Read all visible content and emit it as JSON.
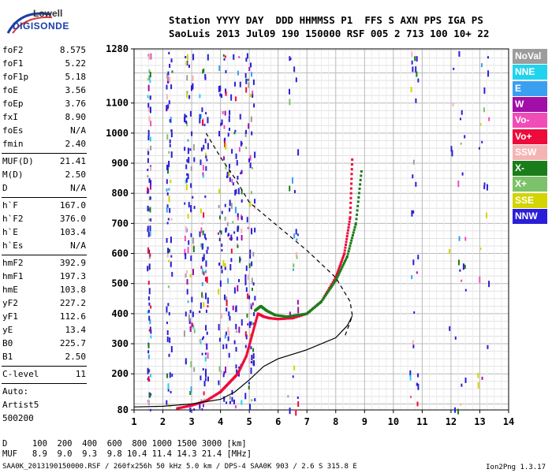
{
  "logo": {
    "line1": "Lowell",
    "line2": "DIGISONDE"
  },
  "header": {
    "line1": "Station YYYY DAY  DDD HHMMSS P1  FFS S AXN PPS IGA PS",
    "line2": "SaoLuis 2013 Jul09 190 150000 RSF 005 2 713 100 10+ 22"
  },
  "params_group1": [
    {
      "name": "foF2",
      "value": "8.575"
    },
    {
      "name": "foF1",
      "value": "5.22"
    },
    {
      "name": "foF1p",
      "value": "5.18"
    },
    {
      "name": "foE",
      "value": "3.56"
    },
    {
      "name": "foEp",
      "value": "3.76"
    },
    {
      "name": "fxI",
      "value": "8.90"
    },
    {
      "name": "foEs",
      "value": "N/A"
    },
    {
      "name": "fmin",
      "value": "2.40"
    }
  ],
  "params_group2": [
    {
      "name": "MUF(D)",
      "value": "21.41"
    },
    {
      "name": "M(D)",
      "value": "2.50"
    },
    {
      "name": "D",
      "value": "N/A"
    }
  ],
  "params_group3": [
    {
      "name": "h`F",
      "value": "167.0"
    },
    {
      "name": "h`F2",
      "value": "376.0"
    },
    {
      "name": "h`E",
      "value": "103.4"
    },
    {
      "name": "h`Es",
      "value": "N/A"
    }
  ],
  "params_group4": [
    {
      "name": "hmF2",
      "value": "392.9"
    },
    {
      "name": "hmF1",
      "value": "197.3"
    },
    {
      "name": "hmE",
      "value": "103.8"
    },
    {
      "name": "yF2",
      "value": "227.2"
    },
    {
      "name": "yF1",
      "value": "112.6"
    },
    {
      "name": "yE",
      "value": "13.4"
    },
    {
      "name": "B0",
      "value": "225.7"
    },
    {
      "name": "B1",
      "value": "2.50"
    }
  ],
  "clevel": {
    "name": "C-level",
    "value": "11"
  },
  "auto_text": [
    "Auto:",
    "Artist5",
    "500200"
  ],
  "legend": [
    {
      "label": "NoVal",
      "color": "#9c9c9c"
    },
    {
      "label": "NNE",
      "color": "#22d3ee"
    },
    {
      "label": "E",
      "color": "#3b9ff0"
    },
    {
      "label": "W",
      "color": "#a10ea8"
    },
    {
      "label": "Vo-",
      "color": "#f04db8"
    },
    {
      "label": "Vo+",
      "color": "#ee0a3b"
    },
    {
      "label": "SSW",
      "color": "#f5b4b4"
    },
    {
      "label": "X-",
      "color": "#1a7d1a"
    },
    {
      "label": "X+",
      "color": "#7cc26a"
    },
    {
      "label": "SSE",
      "color": "#d4d400"
    },
    {
      "label": "NNW",
      "color": "#2a1fd6"
    }
  ],
  "footer": {
    "d_row": "D     100  200  400  600  800 1000 1500 3000 [km]",
    "muf_row": "MUF   8.9  9.0  9.3  9.8 10.4 11.4 14.3 21.4 [MHz]",
    "file_row": "SAA0K_2013190150000.RSF / 260fx256h 50 kHz 5.0 km / DPS-4 SAA0K 903 / 2.6 S 315.8 E",
    "version": "Ion2Png 1.3.17"
  },
  "chart_data": {
    "type": "scatter",
    "xlim": [
      1,
      14
    ],
    "ylim": [
      80,
      1280
    ],
    "x_ticks": [
      1,
      2,
      3,
      4,
      5,
      6,
      7,
      8,
      9,
      10,
      11,
      12,
      13,
      14
    ],
    "y_ticks": [
      80,
      200,
      300,
      400,
      500,
      600,
      700,
      800,
      900,
      1000,
      1100,
      1280
    ],
    "grid": true,
    "legend_position": "right",
    "series": [
      {
        "name": "Vo+",
        "color": "#ee0a3b",
        "x": [
          2.5,
          3.0,
          3.5,
          4.0,
          4.3,
          4.6,
          4.9,
          5.1,
          5.3,
          5.5,
          5.7,
          6.0,
          6.5,
          7.0,
          7.5,
          8.0,
          8.3,
          8.5,
          8.575
        ],
        "y": [
          85,
          95,
          110,
          140,
          170,
          200,
          260,
          330,
          400,
          390,
          385,
          382,
          385,
          400,
          440,
          520,
          600,
          720,
          920
        ]
      },
      {
        "name": "X-",
        "color": "#1a7d1a",
        "x": [
          5.2,
          5.4,
          5.6,
          5.9,
          6.3,
          7.0,
          7.5,
          8.0,
          8.4,
          8.7,
          8.9
        ],
        "y": [
          410,
          425,
          410,
          395,
          390,
          400,
          440,
          510,
          590,
          700,
          880
        ]
      },
      {
        "name": "profile",
        "color": "#000000",
        "x": [
          1.0,
          2.0,
          3.0,
          4.0,
          4.5,
          5.0,
          5.5,
          6.0,
          7.0,
          8.0,
          8.4,
          8.575
        ],
        "y": [
          90,
          92,
          100,
          115,
          140,
          180,
          225,
          250,
          280,
          320,
          360,
          393
        ]
      },
      {
        "name": "dashed",
        "color": "#000000",
        "x": [
          3.5,
          4.0,
          4.5,
          5.0,
          6.0,
          7.0,
          8.0,
          8.5,
          8.575,
          8.3
        ],
        "y": [
          1000,
          920,
          850,
          770,
          690,
          610,
          520,
          440,
          393,
          320
        ]
      }
    ]
  }
}
